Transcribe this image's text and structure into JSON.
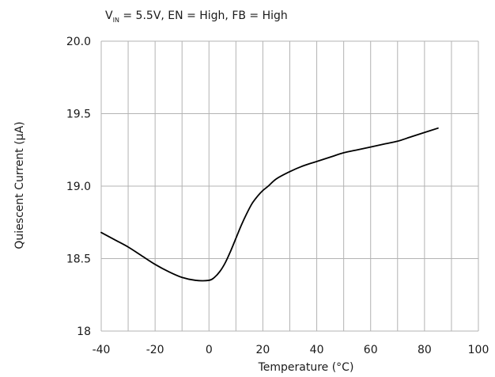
{
  "chart_data": {
    "type": "line",
    "annotation": {
      "v_main": "V",
      "v_sub": "IN",
      "rest": " = 5.5V, EN = High, FB = High"
    },
    "xlabel": "Temperature (°C)",
    "ylabel": "Quiescent Current (µA)",
    "xlim": [
      -40,
      100
    ],
    "ylim": [
      18,
      20
    ],
    "x_ticks": [
      -40,
      -20,
      0,
      20,
      40,
      60,
      80,
      100
    ],
    "x_tick_labels": [
      "-40",
      "-20",
      "0",
      "20",
      "40",
      "60",
      "80",
      "100"
    ],
    "y_ticks": [
      18,
      18.5,
      19,
      19.5,
      20
    ],
    "y_tick_labels": [
      "18",
      "18.5",
      "19.0",
      "19.5",
      "20.0"
    ],
    "x_minor_step": 10,
    "grid": true,
    "line_color": "#000000",
    "grid_color": "#b3b3b3",
    "series": [
      {
        "x": [
          -40,
          -35,
          -30,
          -25,
          -20,
          -15,
          -10,
          -5,
          0,
          2,
          4,
          6,
          8,
          10,
          12,
          14,
          16,
          18,
          20,
          22,
          25,
          30,
          35,
          40,
          45,
          50,
          55,
          60,
          65,
          70,
          75,
          80,
          85
        ],
        "y": [
          18.68,
          18.63,
          18.58,
          18.52,
          18.46,
          18.41,
          18.37,
          18.35,
          18.35,
          18.37,
          18.41,
          18.47,
          18.55,
          18.64,
          18.73,
          18.81,
          18.88,
          18.93,
          18.97,
          19.0,
          19.05,
          19.1,
          19.14,
          19.17,
          19.2,
          19.23,
          19.25,
          19.27,
          19.29,
          19.31,
          19.34,
          19.37,
          19.4
        ]
      }
    ]
  }
}
